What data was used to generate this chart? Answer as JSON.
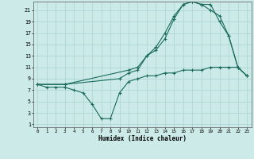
{
  "title": "",
  "xlabel": "Humidex (Indice chaleur)",
  "background_color": "#cceae8",
  "grid_color": "#aad4d2",
  "line_color": "#1a6b5a",
  "xlim": [
    -0.5,
    23.5
  ],
  "ylim": [
    0.5,
    22.5
  ],
  "xticks": [
    0,
    1,
    2,
    3,
    4,
    5,
    6,
    7,
    8,
    9,
    10,
    11,
    12,
    13,
    14,
    15,
    16,
    17,
    18,
    19,
    20,
    21,
    22,
    23
  ],
  "yticks": [
    1,
    3,
    5,
    7,
    9,
    11,
    13,
    15,
    17,
    19,
    21
  ],
  "series1_x": [
    0,
    1,
    2,
    3,
    4,
    5,
    6,
    7,
    8,
    9,
    10,
    11,
    12,
    13,
    14,
    15,
    16,
    17,
    18,
    19,
    20,
    21,
    22,
    23
  ],
  "series1_y": [
    8,
    7.5,
    7.5,
    7.5,
    7.0,
    6.5,
    4.5,
    2.0,
    2.0,
    6.5,
    8.5,
    9.0,
    9.5,
    9.5,
    10.0,
    10.0,
    10.5,
    10.5,
    10.5,
    11.0,
    11.0,
    11.0,
    11.0,
    9.5
  ],
  "series2_x": [
    0,
    3,
    9,
    10,
    11,
    12,
    13,
    14,
    15,
    16,
    17,
    18,
    19,
    20,
    21,
    22,
    23
  ],
  "series2_y": [
    8.0,
    8.0,
    9.0,
    10.0,
    10.5,
    13.0,
    14.0,
    16.0,
    19.5,
    22.0,
    22.5,
    22.0,
    21.0,
    20.0,
    16.5,
    11.0,
    9.5
  ],
  "series3_x": [
    0,
    3,
    10,
    11,
    12,
    13,
    14,
    15,
    16,
    17,
    18,
    19,
    20,
    21,
    22,
    23
  ],
  "series3_y": [
    8.0,
    8.0,
    10.5,
    11.0,
    13.0,
    14.5,
    17.0,
    20.0,
    22.0,
    22.5,
    22.0,
    22.0,
    19.0,
    16.5,
    11.0,
    9.5
  ]
}
